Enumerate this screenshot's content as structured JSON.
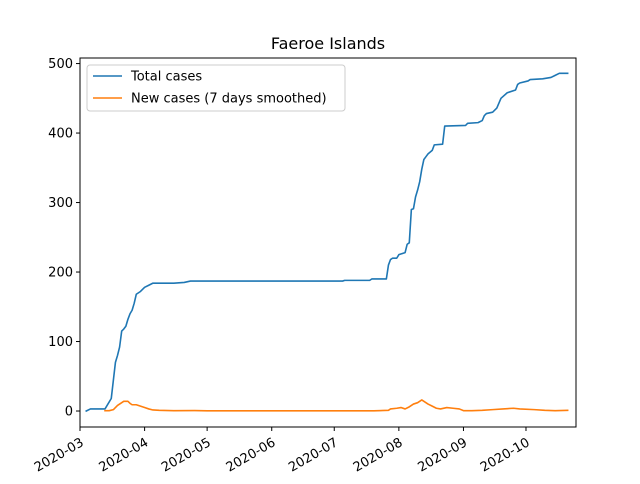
{
  "chart_data": {
    "type": "line",
    "title": "Faeroe Islands",
    "xlabel": "",
    "ylabel": "",
    "xlim": [
      "2020-03-01",
      "2020-10-25"
    ],
    "ylim": [
      -23,
      508
    ],
    "x_ticks": [
      "2020-03",
      "2020-04",
      "2020-05",
      "2020-06",
      "2020-07",
      "2020-08",
      "2020-09",
      "2020-10"
    ],
    "y_ticks": [
      0,
      100,
      200,
      300,
      400,
      500
    ],
    "grid": false,
    "legend_position": "top-left",
    "series": [
      {
        "name": "Total cases",
        "color": "#1f77b4",
        "points": [
          [
            "2020-03-04",
            0
          ],
          [
            "2020-03-06",
            3
          ],
          [
            "2020-03-10",
            3
          ],
          [
            "2020-03-13",
            3
          ],
          [
            "2020-03-14",
            8
          ],
          [
            "2020-03-16",
            18
          ],
          [
            "2020-03-18",
            70
          ],
          [
            "2020-03-19",
            80
          ],
          [
            "2020-03-20",
            92
          ],
          [
            "2020-03-21",
            115
          ],
          [
            "2020-03-22",
            118
          ],
          [
            "2020-03-23",
            122
          ],
          [
            "2020-03-24",
            132
          ],
          [
            "2020-03-25",
            140
          ],
          [
            "2020-03-26",
            145
          ],
          [
            "2020-03-27",
            155
          ],
          [
            "2020-03-28",
            168
          ],
          [
            "2020-03-30",
            172
          ],
          [
            "2020-04-01",
            178
          ],
          [
            "2020-04-03",
            181
          ],
          [
            "2020-04-05",
            184
          ],
          [
            "2020-04-15",
            184
          ],
          [
            "2020-04-20",
            185
          ],
          [
            "2020-04-23",
            187
          ],
          [
            "2020-07-05",
            187
          ],
          [
            "2020-07-06",
            188
          ],
          [
            "2020-07-18",
            188
          ],
          [
            "2020-07-19",
            190
          ],
          [
            "2020-07-26",
            190
          ],
          [
            "2020-07-27",
            210
          ],
          [
            "2020-07-28",
            218
          ],
          [
            "2020-07-29",
            220
          ],
          [
            "2020-07-31",
            220
          ],
          [
            "2020-08-01",
            225
          ],
          [
            "2020-08-04",
            228
          ],
          [
            "2020-08-05",
            240
          ],
          [
            "2020-08-06",
            242
          ],
          [
            "2020-08-07",
            290
          ],
          [
            "2020-08-08",
            291
          ],
          [
            "2020-08-09",
            308
          ],
          [
            "2020-08-10",
            318
          ],
          [
            "2020-08-11",
            330
          ],
          [
            "2020-08-12",
            348
          ],
          [
            "2020-08-13",
            362
          ],
          [
            "2020-08-14",
            366
          ],
          [
            "2020-08-15",
            370
          ],
          [
            "2020-08-17",
            375
          ],
          [
            "2020-08-18",
            383
          ],
          [
            "2020-08-22",
            384
          ],
          [
            "2020-08-23",
            410
          ],
          [
            "2020-09-02",
            411
          ],
          [
            "2020-09-03",
            414
          ],
          [
            "2020-09-08",
            415
          ],
          [
            "2020-09-10",
            418
          ],
          [
            "2020-09-11",
            425
          ],
          [
            "2020-09-12",
            428
          ],
          [
            "2020-09-15",
            430
          ],
          [
            "2020-09-17",
            436
          ],
          [
            "2020-09-19",
            450
          ],
          [
            "2020-09-22",
            458
          ],
          [
            "2020-09-26",
            462
          ],
          [
            "2020-09-27",
            470
          ],
          [
            "2020-09-28",
            472
          ],
          [
            "2020-10-02",
            475
          ],
          [
            "2020-10-03",
            477
          ],
          [
            "2020-10-09",
            478
          ],
          [
            "2020-10-13",
            480
          ],
          [
            "2020-10-15",
            483
          ],
          [
            "2020-10-17",
            486
          ],
          [
            "2020-10-21",
            486
          ]
        ]
      },
      {
        "name": "New cases (7 days smoothed)",
        "color": "#ff7f0e",
        "points": [
          [
            "2020-03-13",
            0.5
          ],
          [
            "2020-03-15",
            0.5
          ],
          [
            "2020-03-17",
            2
          ],
          [
            "2020-03-19",
            8
          ],
          [
            "2020-03-21",
            12
          ],
          [
            "2020-03-22",
            14
          ],
          [
            "2020-03-24",
            14
          ],
          [
            "2020-03-25",
            11
          ],
          [
            "2020-03-26",
            9
          ],
          [
            "2020-03-28",
            9
          ],
          [
            "2020-03-30",
            7
          ],
          [
            "2020-04-01",
            5
          ],
          [
            "2020-04-03",
            3
          ],
          [
            "2020-04-05",
            1.5
          ],
          [
            "2020-04-08",
            1
          ],
          [
            "2020-04-15",
            0.5
          ],
          [
            "2020-04-25",
            0.6
          ],
          [
            "2020-05-01",
            0.3
          ],
          [
            "2020-07-20",
            0.3
          ],
          [
            "2020-07-27",
            1
          ],
          [
            "2020-07-28",
            3
          ],
          [
            "2020-07-31",
            4
          ],
          [
            "2020-08-02",
            5
          ],
          [
            "2020-08-04",
            3
          ],
          [
            "2020-08-06",
            6
          ],
          [
            "2020-08-08",
            10
          ],
          [
            "2020-08-10",
            12
          ],
          [
            "2020-08-12",
            16
          ],
          [
            "2020-08-13",
            14
          ],
          [
            "2020-08-15",
            10
          ],
          [
            "2020-08-17",
            7
          ],
          [
            "2020-08-19",
            4
          ],
          [
            "2020-08-21",
            3
          ],
          [
            "2020-08-24",
            5
          ],
          [
            "2020-08-27",
            4
          ],
          [
            "2020-08-30",
            3
          ],
          [
            "2020-09-01",
            0.5
          ],
          [
            "2020-09-05",
            0.5
          ],
          [
            "2020-09-10",
            1
          ],
          [
            "2020-09-15",
            2
          ],
          [
            "2020-09-20",
            3
          ],
          [
            "2020-09-25",
            4
          ],
          [
            "2020-09-28",
            3
          ],
          [
            "2020-10-05",
            2
          ],
          [
            "2020-10-10",
            1
          ],
          [
            "2020-10-15",
            0.5
          ],
          [
            "2020-10-21",
            1
          ]
        ]
      }
    ]
  }
}
